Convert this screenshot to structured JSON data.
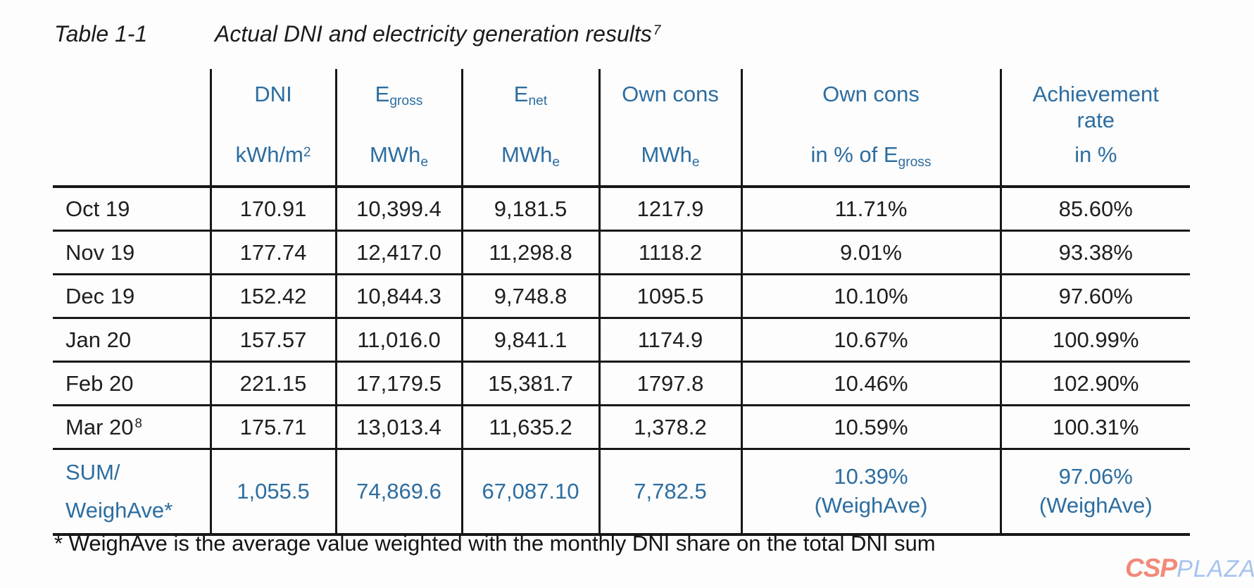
{
  "caption": {
    "label": "Table 1-1",
    "text": "Actual DNI and electricity generation results",
    "sup": "7"
  },
  "table": {
    "columns": [
      {
        "line1": "DNI",
        "line1_sub": "",
        "line2": "",
        "line3": "kWh/m",
        "line3_sub": "",
        "line3_sup": "2"
      },
      {
        "line1": "E",
        "line1_sub": "gross",
        "line2": "",
        "line3": "MWh",
        "line3_sub": "e",
        "line3_sup": ""
      },
      {
        "line1": "E",
        "line1_sub": "net",
        "line2": "",
        "line3": "MWh",
        "line3_sub": "e",
        "line3_sup": ""
      },
      {
        "line1": "Own cons",
        "line1_sub": "",
        "line2": "",
        "line3": "MWh",
        "line3_sub": "e",
        "line3_sup": ""
      },
      {
        "line1": "Own cons",
        "line1_sub": "",
        "line2": "",
        "line3": "in % of E",
        "line3_sub": "gross",
        "line3_sup": ""
      },
      {
        "line1": "Achievement",
        "line1_sub": "",
        "line2": "rate",
        "line3": "in %",
        "line3_sub": "",
        "line3_sup": ""
      }
    ],
    "rows": [
      {
        "label": "Oct 19",
        "label_sup": "",
        "values": [
          "170.91",
          "10,399.4",
          "9,181.5",
          "1217.9",
          "11.71%",
          "85.60%"
        ]
      },
      {
        "label": "Nov 19",
        "label_sup": "",
        "values": [
          "177.74",
          "12,417.0",
          "11,298.8",
          "1118.2",
          "9.01%",
          "93.38%"
        ]
      },
      {
        "label": "Dec 19",
        "label_sup": "",
        "values": [
          "152.42",
          "10,844.3",
          "9,748.8",
          "1095.5",
          "10.10%",
          "97.60%"
        ]
      },
      {
        "label": "Jan 20",
        "label_sup": "",
        "values": [
          "157.57",
          "11,016.0",
          "9,841.1",
          "1174.9",
          "10.67%",
          "100.99%"
        ]
      },
      {
        "label": "Feb 20",
        "label_sup": "",
        "values": [
          "221.15",
          "17,179.5",
          "15,381.7",
          "1797.8",
          "10.46%",
          "102.90%"
        ]
      },
      {
        "label": "Mar 20",
        "label_sup": "8",
        "values": [
          "175.71",
          "13,013.4",
          "11,635.2",
          "1,378.2",
          "10.59%",
          "100.31%"
        ]
      }
    ],
    "sum_row": {
      "label_line1": "SUM/",
      "label_line2": "WeighAve*",
      "values": [
        "1,055.5",
        "74,869.6",
        "67,087.10",
        "7,782.5",
        "10.39%",
        "97.06%"
      ],
      "notes": [
        "",
        "",
        "",
        "",
        "(WeighAve)",
        "(WeighAve)"
      ]
    }
  },
  "footnote": "* WeighAve is the average value weighted with the monthly DNI share on the total DNI sum",
  "logo": {
    "csp": "CSP",
    "plaza": "PLAZA"
  },
  "colors": {
    "header_blue": "#2c6da0",
    "body_text": "#1e1e1e",
    "line": "#171717",
    "logo_csp": "#f2897a",
    "logo_plaza": "#a6c3ee"
  }
}
